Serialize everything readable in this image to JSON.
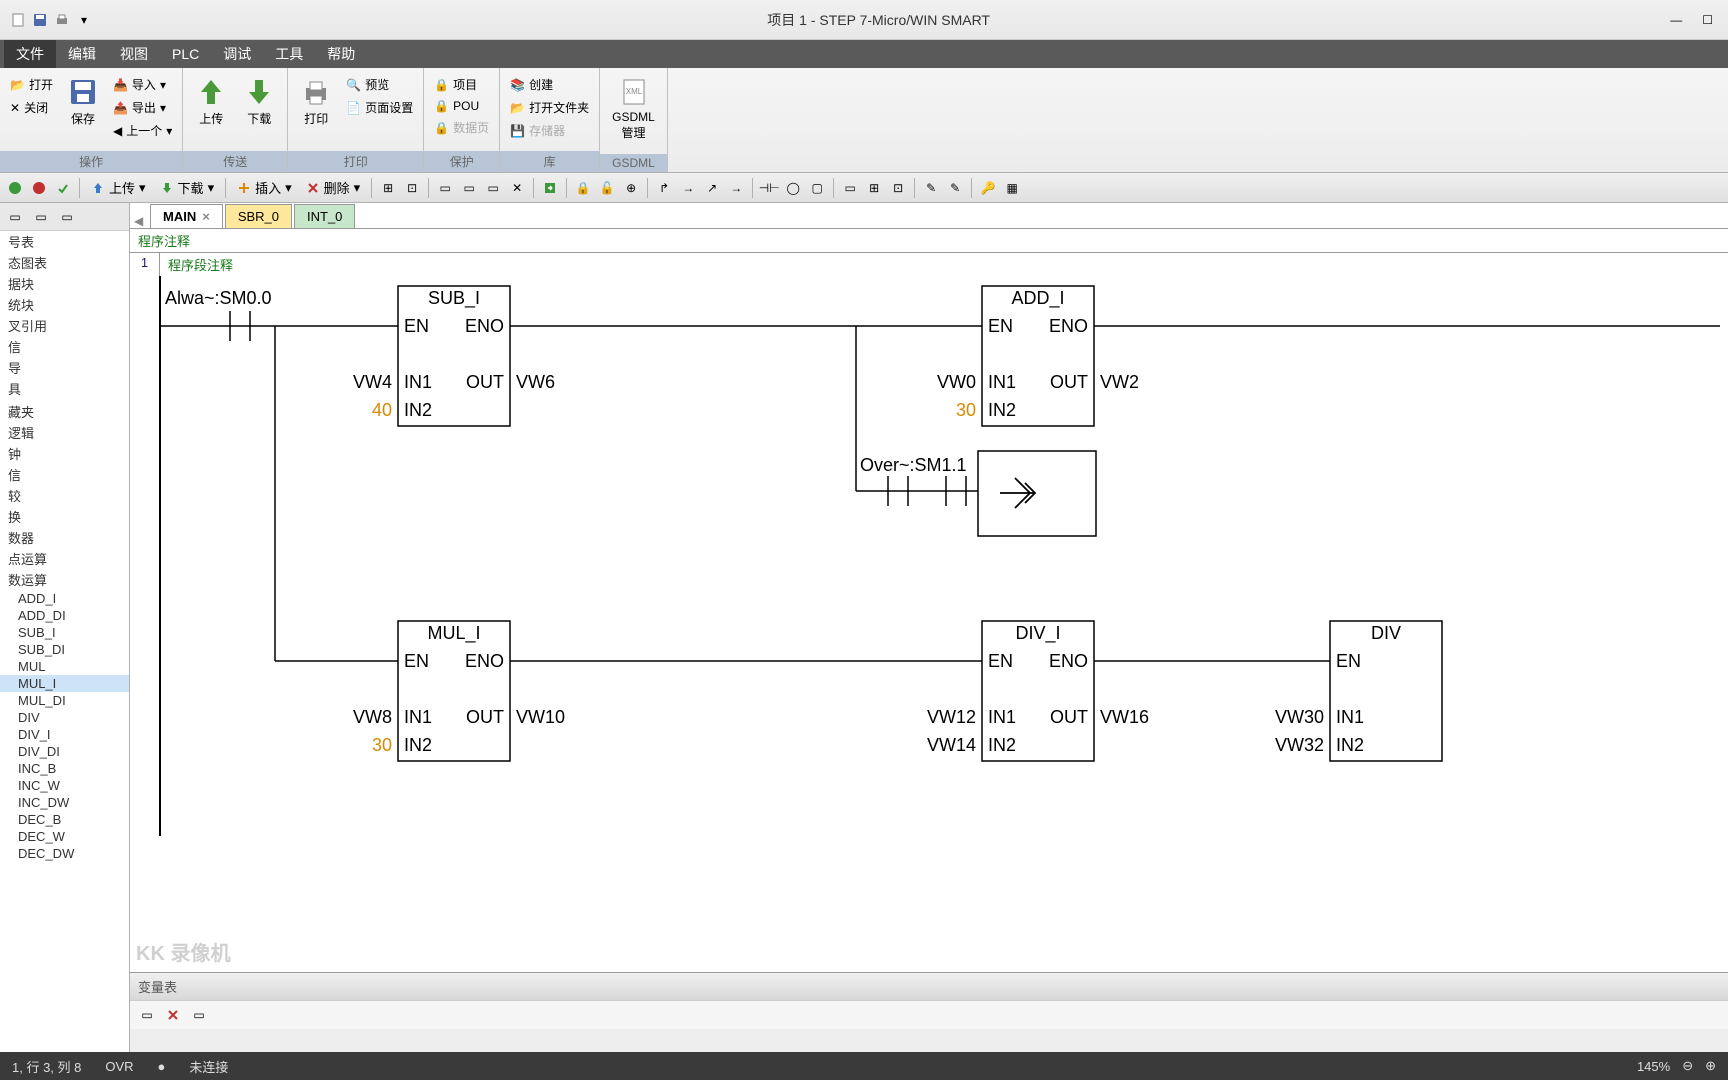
{
  "title": "项目 1 - STEP 7-Micro/WIN SMART",
  "menu": [
    "文件",
    "编辑",
    "视图",
    "PLC",
    "调试",
    "工具",
    "帮助"
  ],
  "ribbon": {
    "group1": {
      "label": "操作",
      "open": "打开",
      "close": "关闭",
      "save": "保存",
      "import": "导入",
      "export": "导出",
      "prev": "上一个"
    },
    "group2": {
      "label": "传送",
      "upload": "上传",
      "download": "下载"
    },
    "group3": {
      "label": "打印",
      "print": "打印",
      "preview": "预览",
      "pagesetup": "页面设置"
    },
    "group4": {
      "label": "保护",
      "project": "项目",
      "pou": "POU",
      "datapage": "数据页"
    },
    "group5": {
      "label": "库",
      "create": "创建",
      "openfolder": "打开文件夹",
      "memory": "存储器"
    },
    "group6": {
      "label": "GSDML",
      "gsdml": "GSDML\n管理"
    }
  },
  "toolbar": {
    "upload": "上传",
    "download": "下载",
    "insert": "插入",
    "delete": "删除"
  },
  "sidebar": [
    "号表",
    "态图表",
    "据块",
    "统块",
    "叉引用",
    "信",
    "导",
    "具",
    "",
    "藏夹",
    "逻辑",
    "钟",
    "信",
    "较",
    "换",
    "数器",
    "点运算",
    "数运算",
    "ADD_I",
    "ADD_DI",
    "SUB_I",
    "SUB_DI",
    "MUL",
    "MUL_I",
    "MUL_DI",
    "DIV",
    "DIV_I",
    "DIV_DI",
    "INC_B",
    "INC_W",
    "INC_DW",
    "DEC_B",
    "DEC_W",
    "DEC_DW"
  ],
  "tabs": [
    {
      "label": "MAIN",
      "type": "active",
      "closable": true
    },
    {
      "label": "SBR_0",
      "type": "sbr"
    },
    {
      "label": "INT_0",
      "type": "int"
    }
  ],
  "editor": {
    "programComment": "程序注释",
    "networkNum": "1",
    "networkComment": "程序段注释",
    "contact1": "Alwa~:SM0.0",
    "contact2": "Over~:SM1.1",
    "blocks": {
      "sub": {
        "name": "SUB_I",
        "in1": "VW4",
        "in2": "40",
        "out": "VW6"
      },
      "add": {
        "name": "ADD_I",
        "in1": "VW0",
        "in2": "30",
        "out": "VW2"
      },
      "mul": {
        "name": "MUL_I",
        "in1": "VW8",
        "in2": "30",
        "out": "VW10"
      },
      "div": {
        "name": "DIV_I",
        "in1": "VW12",
        "in2": "VW14",
        "out": "VW16"
      },
      "div2": {
        "name": "DIV",
        "in1": "VW30",
        "in2": "VW32"
      }
    },
    "pins": {
      "en": "EN",
      "eno": "ENO",
      "in1": "IN1",
      "in2": "IN2",
      "out": "OUT"
    }
  },
  "varpanel": {
    "title": "变量表"
  },
  "status": {
    "pos": "1, 行 3, 列 8",
    "ovr": "OVR",
    "conn": "未连接",
    "zoom": "145%"
  },
  "watermark": "KK 录像机",
  "colors": {
    "titlebar": "#ececec",
    "menubar": "#5a5a5a",
    "ribbon": "#f0f0f0",
    "green": "#1a7a1a",
    "orange": "#d98a00",
    "blue": "#1a4a9a",
    "block_stroke": "#000",
    "wire": "#000"
  }
}
